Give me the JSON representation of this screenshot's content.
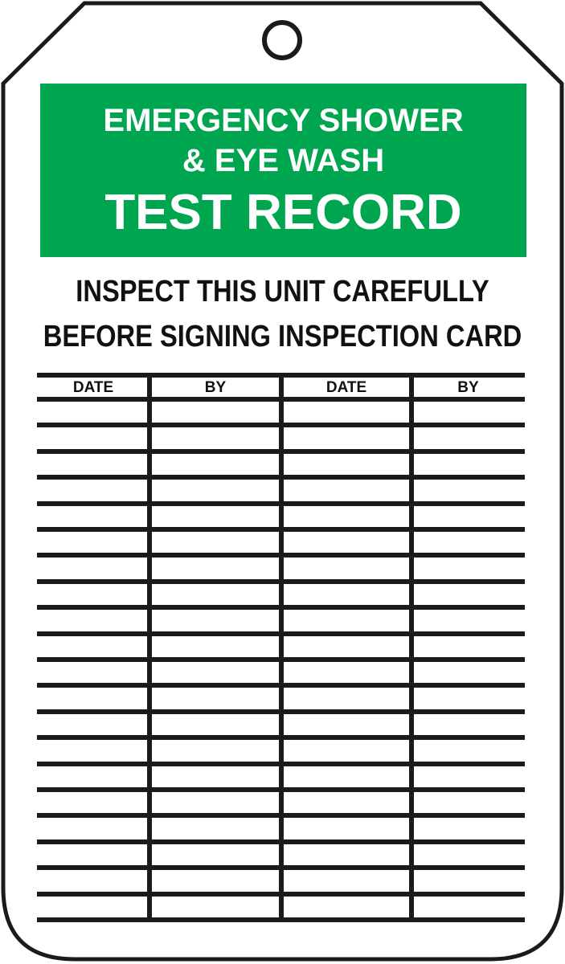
{
  "colors": {
    "banner_green": "#00A64F",
    "ink": "#1c1a1a"
  },
  "banner": {
    "line1": "EMERGENCY SHOWER",
    "line2": "& EYE WASH",
    "line3": "TEST RECORD"
  },
  "instructions": {
    "line1": "INSPECT THIS UNIT CAREFULLY",
    "line2": "BEFORE SIGNING INSPECTION CARD"
  },
  "table": {
    "headers": [
      "DATE",
      "BY",
      "DATE",
      "BY"
    ]
  }
}
